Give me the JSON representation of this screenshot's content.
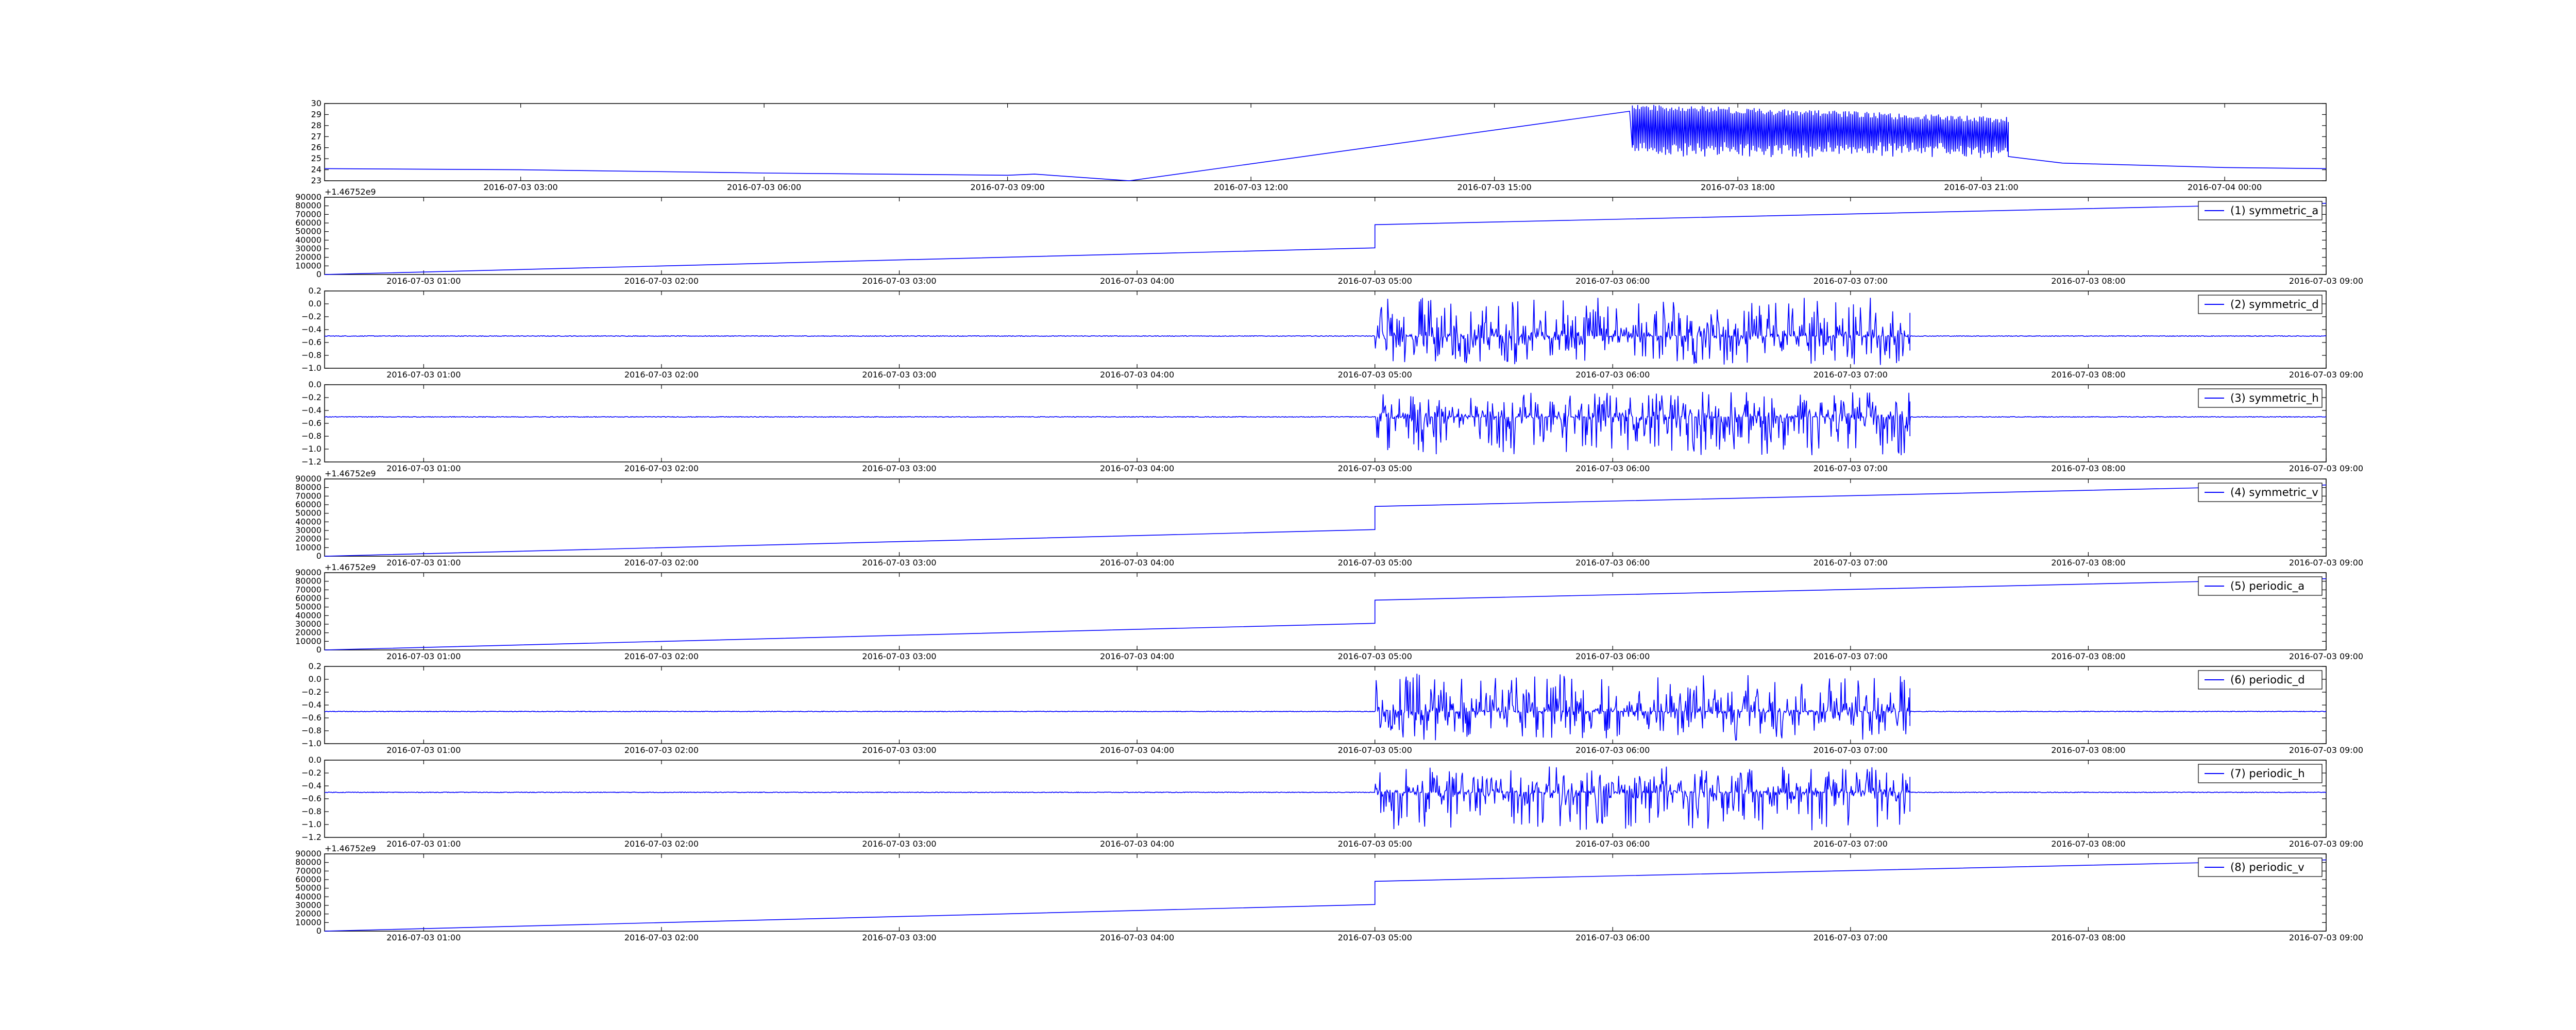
{
  "colors": {
    "series": "#0000ff",
    "axes": "#000000",
    "background": "#ffffff"
  },
  "chart_data": [
    {
      "type": "line",
      "x_axis_type": "datetime",
      "x_ticks": [
        "2016-07-03 03:00",
        "2016-07-03 06:00",
        "2016-07-03 09:00",
        "2016-07-03 12:00",
        "2016-07-03 15:00",
        "2016-07-03 18:00",
        "2016-07-03 21:00",
        "2016-07-04 00:00"
      ],
      "xlim": [
        "2016-07-03 00:35",
        "2016-07-04 01:15"
      ],
      "y_ticks": [
        "23",
        "24",
        "25",
        "26",
        "27",
        "28",
        "29",
        "30"
      ],
      "ylim": [
        23,
        30
      ],
      "y_offset_label": "",
      "legend": null,
      "series": [
        {
          "values_description_free": true,
          "points": [
            [
              "2016-07-03 00:35",
              24.1
            ],
            [
              "2016-07-03 03:00",
              24.0
            ],
            [
              "2016-07-03 06:00",
              23.7
            ],
            [
              "2016-07-03 09:00",
              23.5
            ],
            [
              "2016-07-03 09:20",
              23.6
            ],
            [
              "2016-07-03 10:30",
              23.0
            ],
            [
              "2016-07-03 16:40",
              29.3
            ],
            [
              "2016-07-03 16:42",
              26.0
            ]
          ],
          "dense_segment": {
            "from": "2016-07-03 16:42",
            "to": "2016-07-03 21:20",
            "min": 25.0,
            "max": 30.0
          },
          "tail": [
            [
              "2016-07-03 21:20",
              25.2
            ],
            [
              "2016-07-03 22:00",
              24.6
            ],
            [
              "2016-07-04 00:00",
              24.2
            ],
            [
              "2016-07-04 01:15",
              24.1
            ]
          ]
        }
      ]
    },
    {
      "type": "line",
      "x_axis_type": "datetime",
      "x_ticks": [
        "2016-07-03 01:00",
        "2016-07-03 02:00",
        "2016-07-03 03:00",
        "2016-07-03 04:00",
        "2016-07-03 05:00",
        "2016-07-03 06:00",
        "2016-07-03 07:00",
        "2016-07-03 08:00",
        "2016-07-03 09:00"
      ],
      "xlim": [
        "2016-07-03 00:35",
        "2016-07-03 09:00"
      ],
      "y_ticks": [
        "0",
        "10000",
        "20000",
        "30000",
        "40000",
        "50000",
        "60000",
        "70000",
        "80000",
        "90000"
      ],
      "ylim": [
        0,
        90000
      ],
      "y_offset_label": "+1.46752e9",
      "legend": "(1) symmetric_a",
      "series": [
        {
          "name": "(1) symmetric_a",
          "kind": "ramp",
          "points": [
            [
              "2016-07-03 00:35",
              0
            ],
            [
              "2016-07-03 05:00",
              31000
            ],
            [
              "2016-07-03 05:00",
              58000
            ],
            [
              "2016-07-03 09:00",
              83000
            ]
          ]
        }
      ]
    },
    {
      "type": "line",
      "x_axis_type": "datetime",
      "x_ticks": [
        "2016-07-03 01:00",
        "2016-07-03 02:00",
        "2016-07-03 03:00",
        "2016-07-03 04:00",
        "2016-07-03 05:00",
        "2016-07-03 06:00",
        "2016-07-03 07:00",
        "2016-07-03 08:00",
        "2016-07-03 09:00"
      ],
      "xlim": [
        "2016-07-03 00:35",
        "2016-07-03 09:00"
      ],
      "y_ticks": [
        "−1.0",
        "−0.8",
        "−0.6",
        "−0.4",
        "−0.2",
        "0.0",
        "0.2"
      ],
      "ylim": [
        -1.0,
        0.2
      ],
      "y_offset_label": "",
      "legend": "(2) symmetric_d",
      "series": [
        {
          "name": "(2) symmetric_d",
          "kind": "noise",
          "baseline": -0.5,
          "quiet_amp": 0.005,
          "burst_from": "2016-07-03 05:00",
          "burst_to": "2016-07-03 07:15",
          "burst_min": -0.95,
          "burst_max": 0.1,
          "spike_at": "2016-07-03 07:15"
        }
      ]
    },
    {
      "type": "line",
      "x_axis_type": "datetime",
      "x_ticks": [
        "2016-07-03 01:00",
        "2016-07-03 02:00",
        "2016-07-03 03:00",
        "2016-07-03 04:00",
        "2016-07-03 05:00",
        "2016-07-03 06:00",
        "2016-07-03 07:00",
        "2016-07-03 08:00",
        "2016-07-03 09:00"
      ],
      "xlim": [
        "2016-07-03 00:35",
        "2016-07-03 09:00"
      ],
      "y_ticks": [
        "−1.2",
        "−1.0",
        "−0.8",
        "−0.6",
        "−0.4",
        "−0.2",
        "0.0"
      ],
      "ylim": [
        -1.2,
        0.0
      ],
      "y_offset_label": "",
      "legend": "(3) symmetric_h",
      "series": [
        {
          "name": "(3) symmetric_h",
          "kind": "noise",
          "baseline": -0.5,
          "quiet_amp": 0.005,
          "burst_from": "2016-07-03 05:00",
          "burst_to": "2016-07-03 07:15",
          "burst_min": -1.1,
          "burst_max": -0.1,
          "spike_at": "2016-07-03 07:15"
        }
      ]
    },
    {
      "type": "line",
      "x_axis_type": "datetime",
      "x_ticks": [
        "2016-07-03 01:00",
        "2016-07-03 02:00",
        "2016-07-03 03:00",
        "2016-07-03 04:00",
        "2016-07-03 05:00",
        "2016-07-03 06:00",
        "2016-07-03 07:00",
        "2016-07-03 08:00",
        "2016-07-03 09:00"
      ],
      "xlim": [
        "2016-07-03 00:35",
        "2016-07-03 09:00"
      ],
      "y_ticks": [
        "0",
        "10000",
        "20000",
        "30000",
        "40000",
        "50000",
        "60000",
        "70000",
        "80000",
        "90000"
      ],
      "ylim": [
        0,
        90000
      ],
      "y_offset_label": "+1.46752e9",
      "legend": "(4) symmetric_v",
      "series": [
        {
          "name": "(4) symmetric_v",
          "kind": "ramp",
          "points": [
            [
              "2016-07-03 00:35",
              0
            ],
            [
              "2016-07-03 05:00",
              31000
            ],
            [
              "2016-07-03 05:00",
              58000
            ],
            [
              "2016-07-03 09:00",
              83000
            ]
          ]
        }
      ]
    },
    {
      "type": "line",
      "x_axis_type": "datetime",
      "x_ticks": [
        "2016-07-03 01:00",
        "2016-07-03 02:00",
        "2016-07-03 03:00",
        "2016-07-03 04:00",
        "2016-07-03 05:00",
        "2016-07-03 06:00",
        "2016-07-03 07:00",
        "2016-07-03 08:00",
        "2016-07-03 09:00"
      ],
      "xlim": [
        "2016-07-03 00:35",
        "2016-07-03 09:00"
      ],
      "y_ticks": [
        "0",
        "10000",
        "20000",
        "30000",
        "40000",
        "50000",
        "60000",
        "70000",
        "80000",
        "90000"
      ],
      "ylim": [
        0,
        90000
      ],
      "y_offset_label": "+1.46752e9",
      "legend": "(5) periodic_a",
      "series": [
        {
          "name": "(5) periodic_a",
          "kind": "ramp",
          "points": [
            [
              "2016-07-03 00:35",
              0
            ],
            [
              "2016-07-03 05:00",
              31000
            ],
            [
              "2016-07-03 05:00",
              58000
            ],
            [
              "2016-07-03 09:00",
              83000
            ]
          ]
        }
      ]
    },
    {
      "type": "line",
      "x_axis_type": "datetime",
      "x_ticks": [
        "2016-07-03 01:00",
        "2016-07-03 02:00",
        "2016-07-03 03:00",
        "2016-07-03 04:00",
        "2016-07-03 05:00",
        "2016-07-03 06:00",
        "2016-07-03 07:00",
        "2016-07-03 08:00",
        "2016-07-03 09:00"
      ],
      "xlim": [
        "2016-07-03 00:35",
        "2016-07-03 09:00"
      ],
      "y_ticks": [
        "−1.0",
        "−0.8",
        "−0.6",
        "−0.4",
        "−0.2",
        "0.0",
        "0.2"
      ],
      "ylim": [
        -1.0,
        0.2
      ],
      "y_offset_label": "",
      "legend": "(6) periodic_d",
      "series": [
        {
          "name": "(6) periodic_d",
          "kind": "noise",
          "baseline": -0.5,
          "quiet_amp": 0.005,
          "burst_from": "2016-07-03 05:00",
          "burst_to": "2016-07-03 07:15",
          "burst_min": -0.95,
          "burst_max": 0.1,
          "spike_at": "2016-07-03 07:15"
        }
      ]
    },
    {
      "type": "line",
      "x_axis_type": "datetime",
      "x_ticks": [
        "2016-07-03 01:00",
        "2016-07-03 02:00",
        "2016-07-03 03:00",
        "2016-07-03 04:00",
        "2016-07-03 05:00",
        "2016-07-03 06:00",
        "2016-07-03 07:00",
        "2016-07-03 08:00",
        "2016-07-03 09:00"
      ],
      "xlim": [
        "2016-07-03 00:35",
        "2016-07-03 09:00"
      ],
      "y_ticks": [
        "−1.2",
        "−1.0",
        "−0.8",
        "−0.6",
        "−0.4",
        "−0.2",
        "0.0"
      ],
      "ylim": [
        -1.2,
        0.0
      ],
      "y_offset_label": "",
      "legend": "(7) periodic_h",
      "series": [
        {
          "name": "(7) periodic_h",
          "kind": "noise",
          "baseline": -0.5,
          "quiet_amp": 0.005,
          "burst_from": "2016-07-03 05:00",
          "burst_to": "2016-07-03 07:15",
          "burst_min": -1.1,
          "burst_max": -0.1,
          "spike_at": "2016-07-03 07:15"
        }
      ]
    },
    {
      "type": "line",
      "x_axis_type": "datetime",
      "x_ticks": [
        "2016-07-03 01:00",
        "2016-07-03 02:00",
        "2016-07-03 03:00",
        "2016-07-03 04:00",
        "2016-07-03 05:00",
        "2016-07-03 06:00",
        "2016-07-03 07:00",
        "2016-07-03 08:00",
        "2016-07-03 09:00"
      ],
      "xlim": [
        "2016-07-03 00:35",
        "2016-07-03 09:00"
      ],
      "y_ticks": [
        "0",
        "10000",
        "20000",
        "30000",
        "40000",
        "50000",
        "60000",
        "70000",
        "80000",
        "90000"
      ],
      "ylim": [
        0,
        90000
      ],
      "y_offset_label": "+1.46752e9",
      "legend": "(8) periodic_v",
      "series": [
        {
          "name": "(8) periodic_v",
          "kind": "ramp",
          "points": [
            [
              "2016-07-03 00:35",
              0
            ],
            [
              "2016-07-03 05:00",
              31000
            ],
            [
              "2016-07-03 05:00",
              58000
            ],
            [
              "2016-07-03 09:00",
              83000
            ]
          ]
        }
      ]
    }
  ]
}
